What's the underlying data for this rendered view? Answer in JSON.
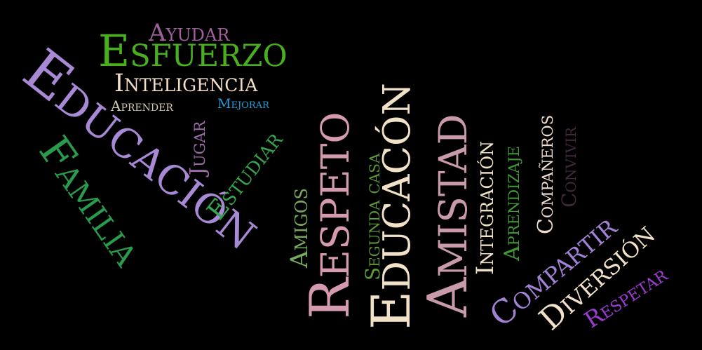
{
  "cloud": {
    "background": "#000000",
    "words": [
      {
        "id": "w-ayudar",
        "text": "Ayudar",
        "color": "#a0609c"
      },
      {
        "id": "w-esfuerzo",
        "text": "Esfuerzo",
        "color": "#49b01d"
      },
      {
        "id": "w-inteligencia",
        "text": "Inteligencia",
        "color": "#f3dfc8"
      },
      {
        "id": "w-aprender",
        "text": "Aprender",
        "color": "#d2c7af"
      },
      {
        "id": "w-mejorar",
        "text": "Mejorar",
        "color": "#1e9fd6"
      },
      {
        "id": "w-educacion-left",
        "text": "Educación",
        "color": "#a889d6"
      },
      {
        "id": "w-familia",
        "text": "Familia",
        "color": "#2a9a4c"
      },
      {
        "id": "w-jugar",
        "text": "Jugar",
        "color": "#9b6ca8"
      },
      {
        "id": "w-estudiar",
        "text": "Estudiar",
        "color": "#35a54e"
      },
      {
        "id": "w-amigos",
        "text": "Amigos",
        "color": "#7aaa5d"
      },
      {
        "id": "w-respeto",
        "text": "Respeto",
        "color": "#d39ab0"
      },
      {
        "id": "w-segunda-casa",
        "text": "Segunda casa",
        "color": "#5e9a36"
      },
      {
        "id": "w-educacon",
        "text": "Educacón",
        "color": "#f1e2c7"
      },
      {
        "id": "w-amistad",
        "text": "Amistad",
        "color": "#c99aaa"
      },
      {
        "id": "w-integracion",
        "text": "Integración",
        "color": "#efe2c8"
      },
      {
        "id": "w-aprendizaje",
        "text": "Aprendizaje",
        "color": "#3f9a35"
      },
      {
        "id": "w-companeros",
        "text": "Compañeros",
        "color": "#f1ddd0"
      },
      {
        "id": "w-convivir",
        "text": "Convivir",
        "color": "#40283a"
      },
      {
        "id": "w-compartir",
        "text": "Compartir",
        "color": "#a282d6"
      },
      {
        "id": "w-diversion",
        "text": "Diversión",
        "color": "#f1e1c8"
      },
      {
        "id": "w-respetar",
        "text": "Respetar",
        "color": "#9d3bd3"
      }
    ]
  }
}
